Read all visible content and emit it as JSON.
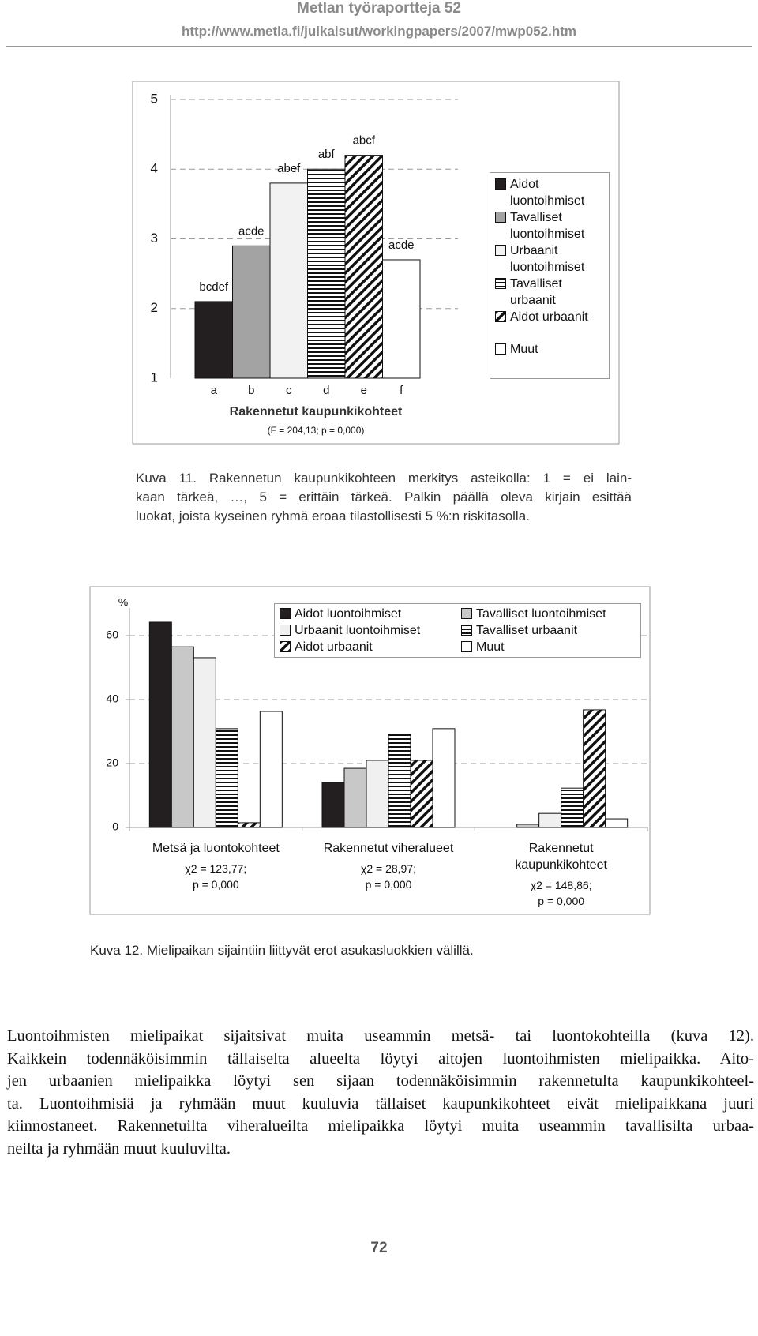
{
  "header": {
    "title": "Metlan työraportteja 52",
    "url": "http://www.metla.fi/julkaisut/workingpapers/2007/mwp052.htm"
  },
  "chart_data": [
    {
      "type": "bar",
      "categories": [
        "a",
        "b",
        "c",
        "d",
        "e",
        "f"
      ],
      "values": [
        2.1,
        2.9,
        3.8,
        4.0,
        4.2,
        2.7
      ],
      "bar_labels": [
        "bcdef",
        "acde",
        "abef",
        "abf",
        "abcf",
        "acde"
      ],
      "colors": [
        "#231f20",
        "#a3a3a3",
        "#f2f2f2",
        "#ffffff",
        "#ffffff",
        "#ffffff"
      ],
      "patterns": [
        "solid",
        "solid",
        "solid",
        "hlines",
        "diagonal",
        "solid"
      ],
      "legend": [
        "Aidot luontoihmiset",
        "Tavalliset luontoihmiset",
        "Urbaanit luontoihmiset",
        "Tavalliset urbaanit",
        "Aidot urbaanit",
        "Muut"
      ],
      "x_label": "Rakennetut kaupunkikohteet",
      "subtitle": "(F = 204,13; p = 0,000)",
      "ylim": [
        1,
        5
      ],
      "yticks": [
        1,
        2,
        3,
        4,
        5
      ],
      "grid": true
    },
    {
      "type": "grouped-bar",
      "y_label": "%",
      "categories": [
        "Metsä ja luontokohteet",
        "Rakennetut viheralueet",
        "Rakennetut kaupunkikohteet"
      ],
      "stats": [
        [
          "χ2 = 123,77;",
          "p = 0,000"
        ],
        [
          "χ2 = 28,97;",
          "p = 0,000"
        ],
        [
          "χ2 = 148,86;",
          "p = 0,000"
        ]
      ],
      "series": [
        {
          "name": "Aidot luontoihmiset",
          "color": "#231f20",
          "pattern": "solid",
          "values": [
            64.2,
            14.1,
            0
          ]
        },
        {
          "name": "Tavalliset luontoihmiset",
          "color": "#c8c8c8",
          "pattern": "solid",
          "values": [
            56.5,
            18.5,
            1.0
          ]
        },
        {
          "name": "Urbaanit luontoihmiset",
          "color": "#f0f0f0",
          "pattern": "solid",
          "values": [
            53.1,
            21.0,
            4.4
          ]
        },
        {
          "name": "Tavalliset urbaanit",
          "color": "#ffffff",
          "pattern": "hlines",
          "values": [
            30.9,
            29.1,
            12.3
          ]
        },
        {
          "name": "Aidot urbaanit",
          "color": "#ffffff",
          "pattern": "diagonal",
          "values": [
            1.5,
            21.0,
            36.8
          ]
        },
        {
          "name": "Muut",
          "color": "#ffffff",
          "pattern": "solid",
          "values": [
            36.3,
            30.9,
            2.7
          ]
        }
      ],
      "ylim": [
        0,
        70
      ],
      "yticks": [
        0,
        20,
        40,
        60
      ],
      "grid": true
    }
  ],
  "captions": [
    [
      "Kuva 11. Rakennetun kaupunkikohteen merkitys asteikolla: 1 = ei lain-",
      "kaan tärkeä, …, 5 = erittäin tärkeä. Palkin päällä oleva kirjain esittää",
      "luokat, joista kyseinen ryhmä eroaa tilastollisesti 5 %:n riskitasolla."
    ],
    [
      "Kuva 12. Mielipaikan sijaintiin liittyvät erot asukasluokkien välillä."
    ]
  ],
  "body": [
    "Luontoihmisten mielipaikat sijaitsivat muita useammin metsä- tai luontokohteilla (kuva 12).",
    "Kaikkein todennäköisimmin tällaiselta alueelta löytyi aitojen luontoihmisten mielipaikka. Aito-",
    "jen urbaanien mielipaikka löytyi sen sijaan todennäköisimmin  rakennetulta kaupunkikohteel-",
    "ta. Luontoihmisiä ja ryhmään muut kuuluvia tällaiset kaupunkikohteet eivät mielipaikkana juuri",
    "kiinnostaneet. Rakennetuilta viheralueilta mielipaikka löytyi muita useammin tavallisilta urbaa-",
    "neilta ja ryhmään muut kuuluvilta."
  ],
  "page_number": "72"
}
